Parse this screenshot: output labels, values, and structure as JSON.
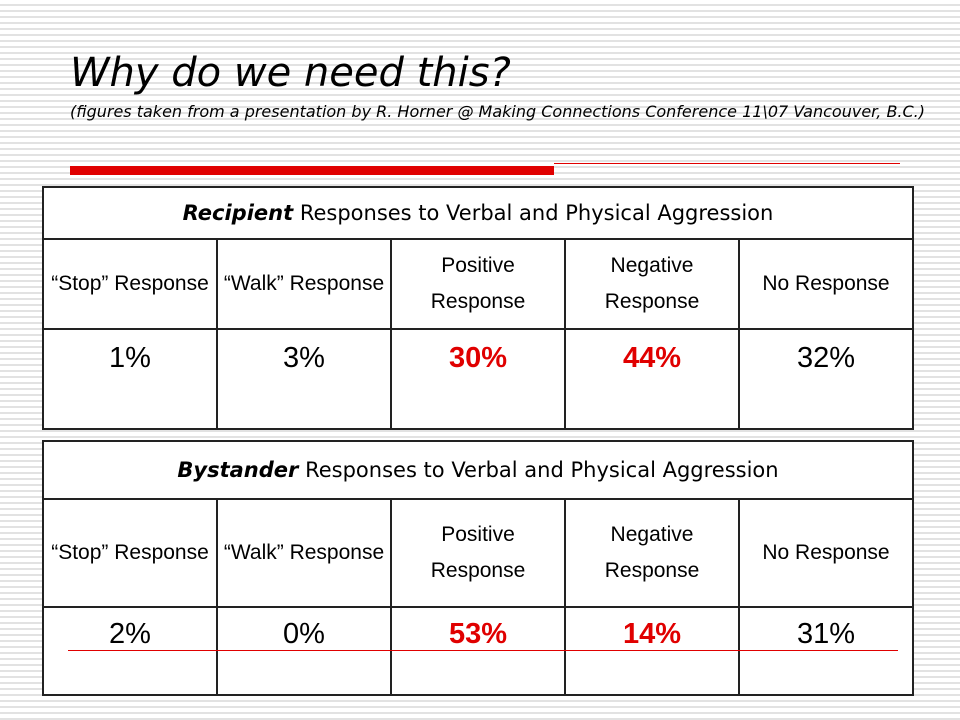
{
  "title": "Why do we need this?",
  "subtitle": "(figures taken from a presentation by R. Horner @ Making Connections Conference 11\\07 Vancouver, B.C.)",
  "accent_color": "#e00000",
  "columns": [
    "“Stop” Response",
    "“Walk” Response",
    "Positive Response",
    "Negative Response",
    "No Response"
  ],
  "recipient": {
    "heading_bold": "Recipient",
    "heading_rest": " Responses to Verbal and Physical Aggression",
    "values": [
      "1%",
      "3%",
      "30%",
      "44%",
      "32%"
    ]
  },
  "bystander": {
    "heading_bold": "Bystander",
    "heading_rest": " Responses to Verbal and Physical Aggression",
    "values": [
      "2%",
      "0%",
      "53%",
      "14%",
      "31%"
    ]
  }
}
